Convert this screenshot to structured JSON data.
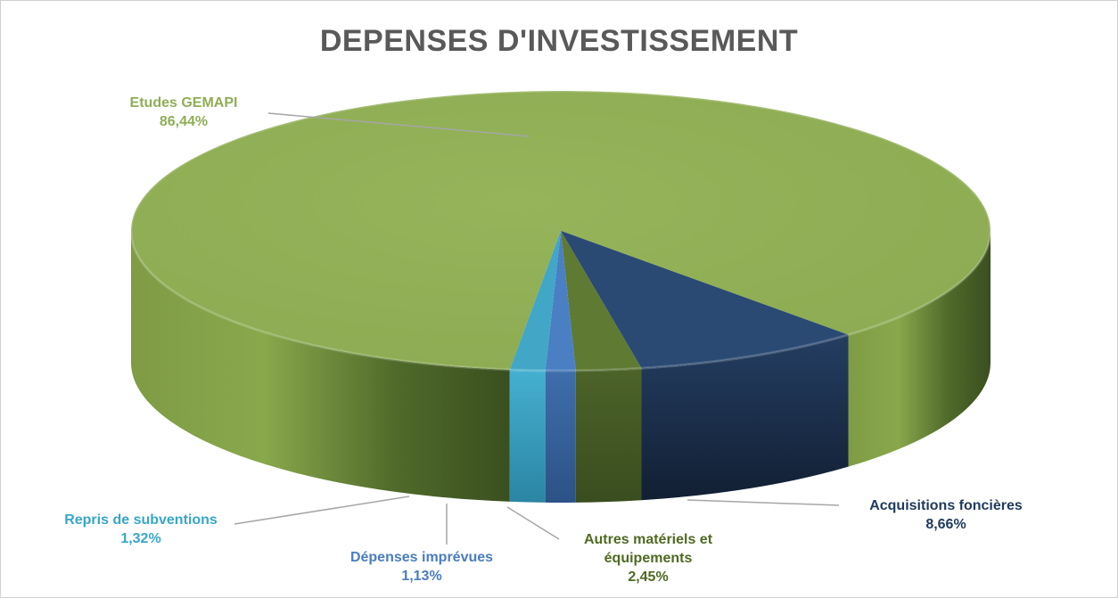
{
  "chart_data": {
    "type": "pie",
    "title": "DEPENSES D'INVESTISSEMENT",
    "slices": [
      {
        "label": "Etudes GEMAPI",
        "value": 86.44,
        "display": "86,44%",
        "color": "#92b157",
        "label_color": "#8fae57"
      },
      {
        "label": "Acquisitions foncières",
        "value": 8.66,
        "display": "8,66%",
        "color": "#2a4a73",
        "label_color": "#1f3a5c"
      },
      {
        "label": "Autres matériels et équipements",
        "label_lines": [
          "Autres matériels et",
          "équipements"
        ],
        "value": 2.45,
        "display": "2,45%",
        "color": "#5e7a33",
        "label_color": "#4f6a22"
      },
      {
        "label": "Dépenses imprévues",
        "value": 1.13,
        "display": "1,13%",
        "color": "#4a7fc4",
        "label_color": "#4a7dc0"
      },
      {
        "label": "Repris de subventions",
        "value": 1.32,
        "display": "1,32%",
        "color": "#42a6c6",
        "label_color": "#37a7c9"
      }
    ],
    "legend": "none",
    "style": "3d-exploded-none"
  }
}
